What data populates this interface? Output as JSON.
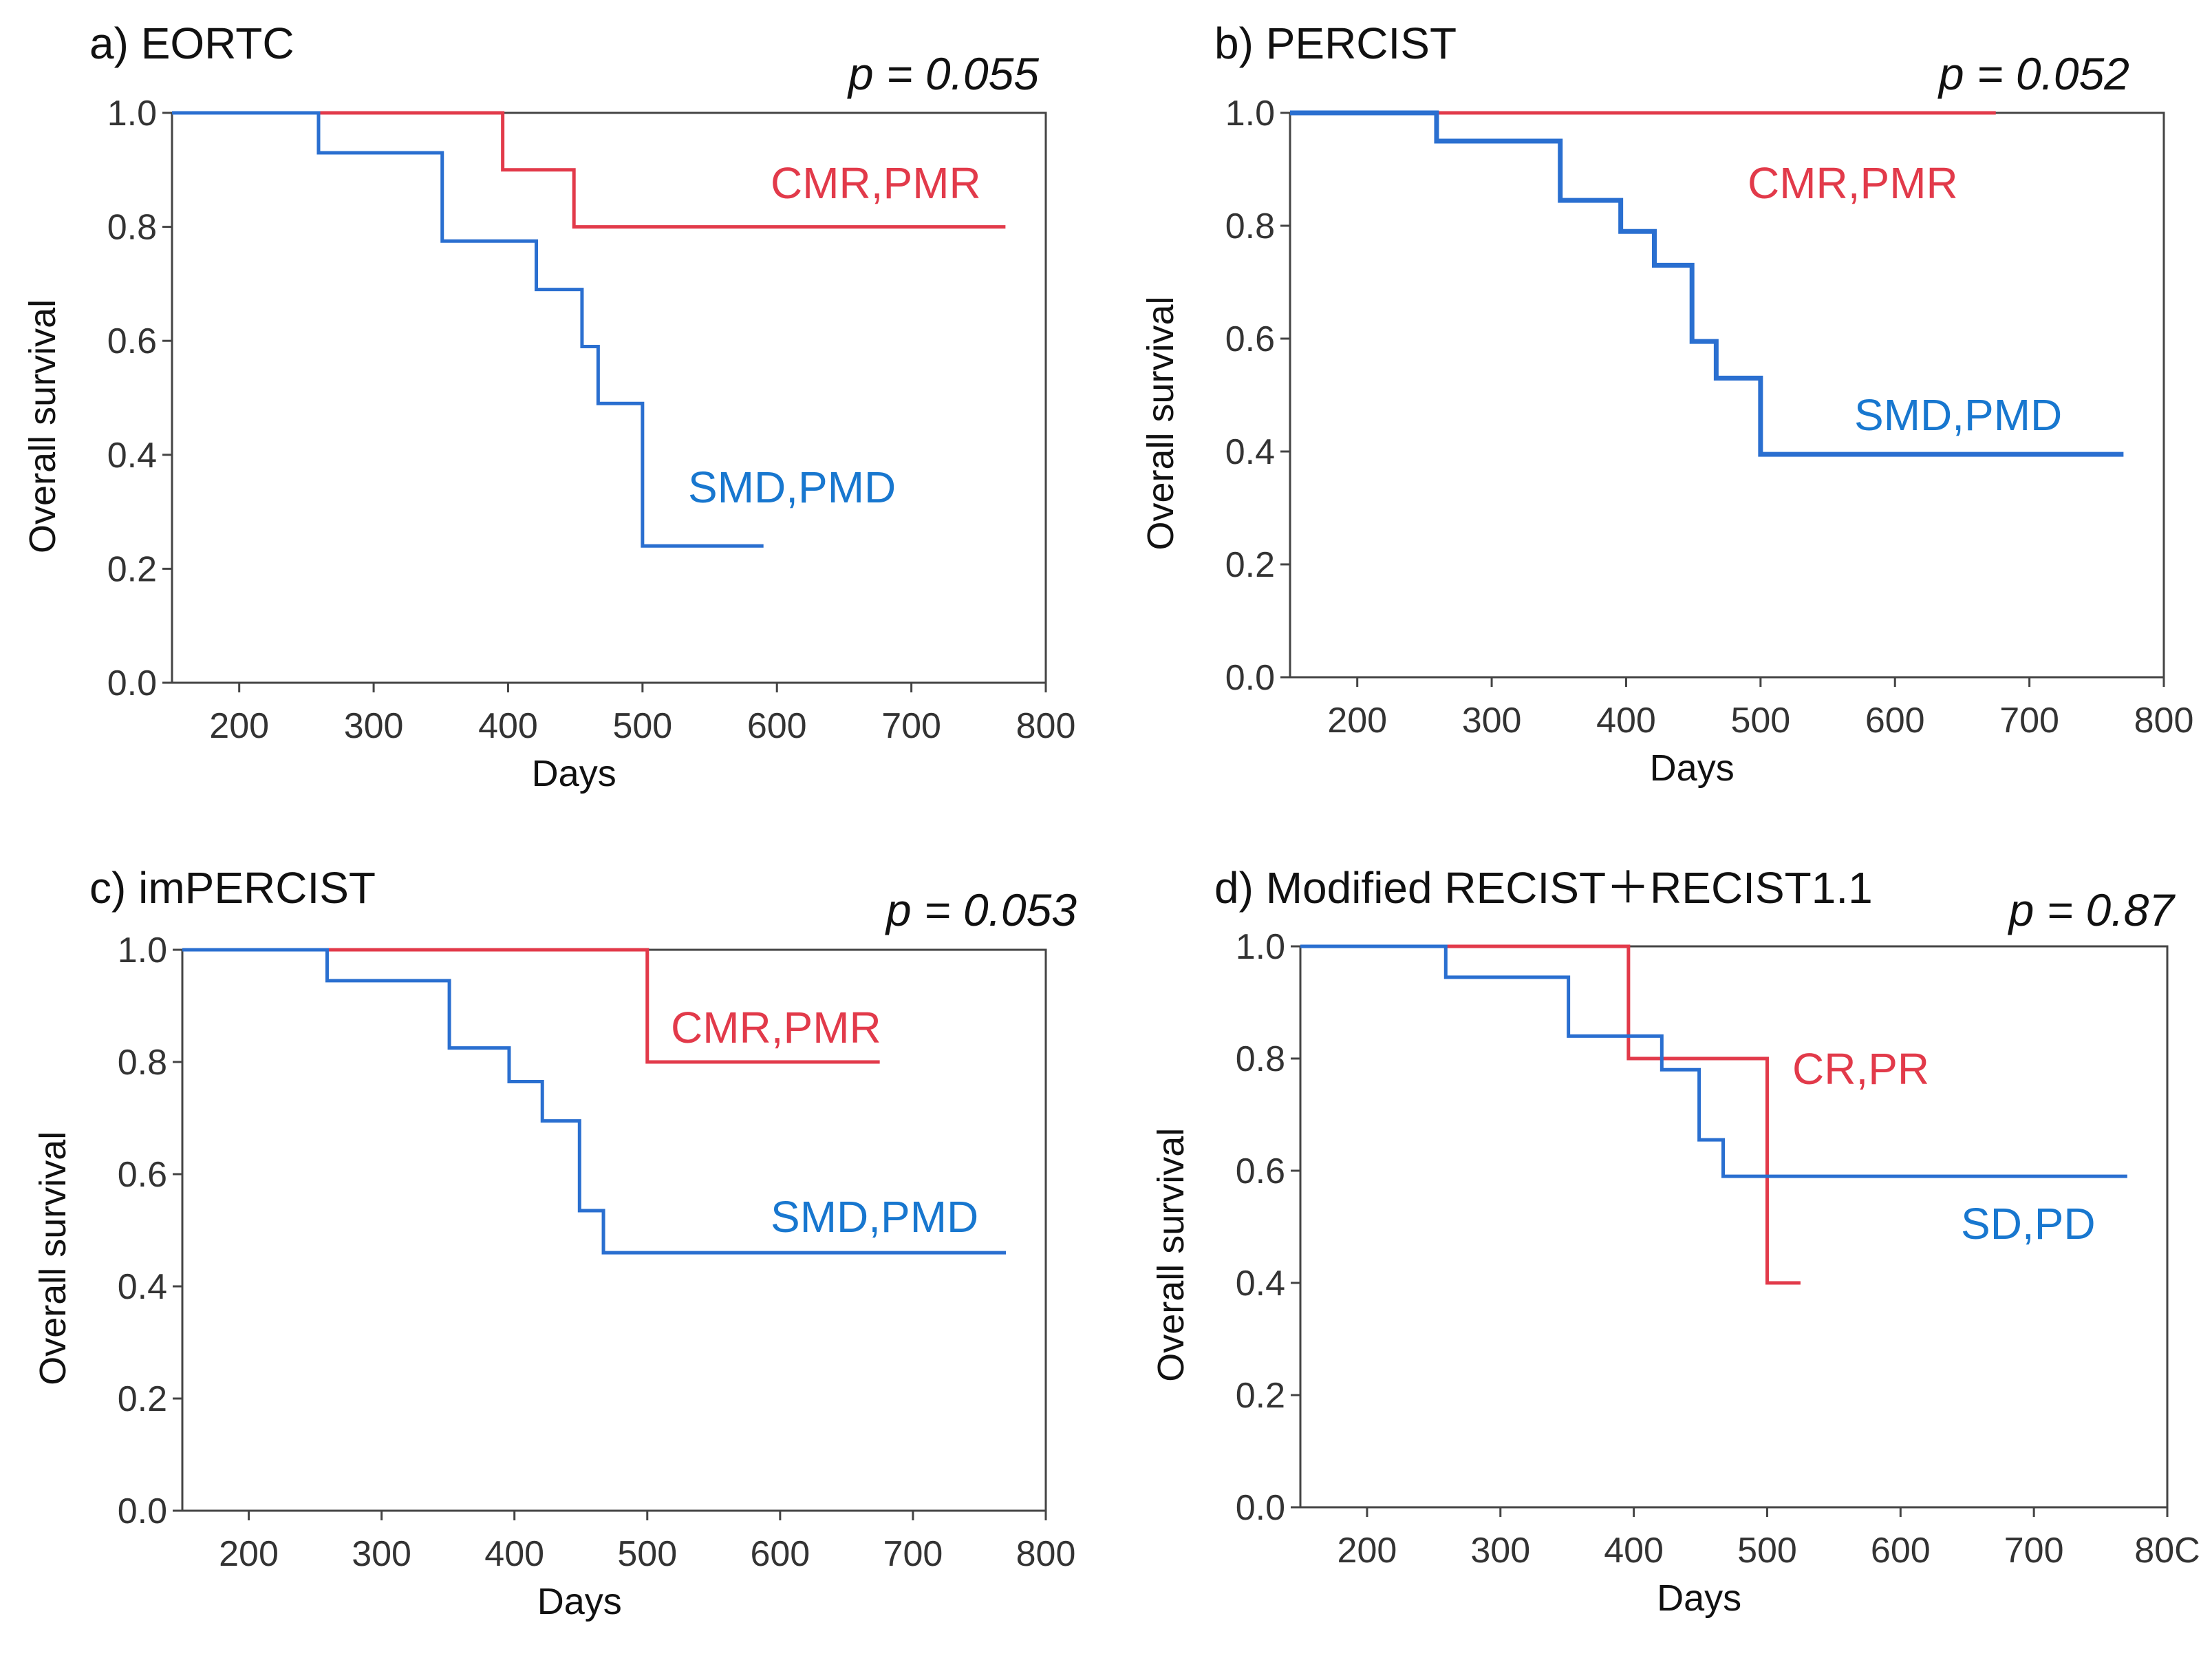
{
  "colors": {
    "red": "#e23a4a",
    "blue": "#2a6fd0",
    "label_blue": "#1877cf"
  },
  "chart_data": [
    {
      "type": "line",
      "step": true,
      "title": "a) EORTC",
      "p_value": "p = 0.055",
      "xlabel": "Days",
      "ylabel": "Overall survival",
      "xlim": [
        150,
        800
      ],
      "ylim": [
        0,
        1
      ],
      "xticks": [
        "200",
        "300",
        "400",
        "500",
        "600",
        "700",
        "800"
      ],
      "yticks": [
        "0.0",
        "0.2",
        "0.4",
        "0.6",
        "0.8",
        "1.0"
      ],
      "series": [
        {
          "name": "CMR,PMR",
          "color": "red",
          "x": [
            150,
            396,
            449,
            770
          ],
          "y": [
            1.0,
            0.9,
            0.8,
            0.8
          ]
        },
        {
          "name": "SMD,PMD",
          "color": "blue",
          "x": [
            150,
            259,
            351,
            421,
            455,
            467,
            500,
            590
          ],
          "y": [
            1.0,
            0.93,
            0.775,
            0.69,
            0.59,
            0.49,
            0.24,
            0.24
          ]
        }
      ]
    },
    {
      "type": "line",
      "step": true,
      "title": "b) PERCIST",
      "p_value": "p = 0.052",
      "xlabel": "Days",
      "ylabel": "Overall survival",
      "xlim": [
        150,
        800
      ],
      "ylim": [
        0,
        1
      ],
      "xticks": [
        "200",
        "300",
        "400",
        "500",
        "600",
        "700",
        "800"
      ],
      "yticks": [
        "0.0",
        "0.2",
        "0.4",
        "0.6",
        "0.8",
        "1.0"
      ],
      "series": [
        {
          "name": "CMR,PMR",
          "color": "red",
          "x": [
            150,
            675
          ],
          "y": [
            1.0,
            1.0
          ]
        },
        {
          "name": "SMD,PMD",
          "color": "blue",
          "x": [
            150,
            259,
            351,
            396,
            421,
            449,
            467,
            500,
            770
          ],
          "y": [
            1.0,
            0.95,
            0.845,
            0.79,
            0.73,
            0.595,
            0.53,
            0.395,
            0.395
          ]
        }
      ]
    },
    {
      "type": "line",
      "step": true,
      "title": "c) imPERCIST",
      "p_value": "p = 0.053",
      "xlabel": "Days",
      "ylabel": "Overall survival",
      "xlim": [
        150,
        800
      ],
      "ylim": [
        0,
        1
      ],
      "xticks": [
        "200",
        "300",
        "400",
        "500",
        "600",
        "700",
        "800"
      ],
      "yticks": [
        "0.0",
        "0.2",
        "0.4",
        "0.6",
        "0.8",
        "1.0"
      ],
      "series": [
        {
          "name": "CMR,PMR",
          "color": "red",
          "x": [
            150,
            500,
            675
          ],
          "y": [
            1.0,
            0.8,
            0.8
          ]
        },
        {
          "name": "SMD,PMD",
          "color": "blue",
          "x": [
            150,
            259,
            351,
            396,
            421,
            449,
            467,
            770
          ],
          "y": [
            1.0,
            0.945,
            0.825,
            0.765,
            0.695,
            0.535,
            0.46,
            0.46
          ]
        }
      ]
    },
    {
      "type": "line",
      "step": true,
      "title": "d) Modified RECIST＋RECIST1.1",
      "p_value": "p = 0.87",
      "xlabel": "Days",
      "ylabel": "Overall survival",
      "xlim": [
        150,
        800
      ],
      "ylim": [
        0,
        1
      ],
      "xticks": [
        "200",
        "300",
        "400",
        "500",
        "600",
        "700",
        "80C"
      ],
      "yticks": [
        "0.0",
        "0.2",
        "0.4",
        "0.6",
        "0.8",
        "1.0"
      ],
      "series": [
        {
          "name": "CR,PR",
          "color": "red",
          "x": [
            150,
            396,
            500,
            525
          ],
          "y": [
            1.0,
            0.8,
            0.4,
            0.4
          ]
        },
        {
          "name": "SD,PD",
          "color": "blue",
          "x": [
            150,
            259,
            351,
            421,
            449,
            467,
            770
          ],
          "y": [
            1.0,
            0.945,
            0.84,
            0.78,
            0.655,
            0.59,
            0.59
          ]
        }
      ]
    }
  ]
}
